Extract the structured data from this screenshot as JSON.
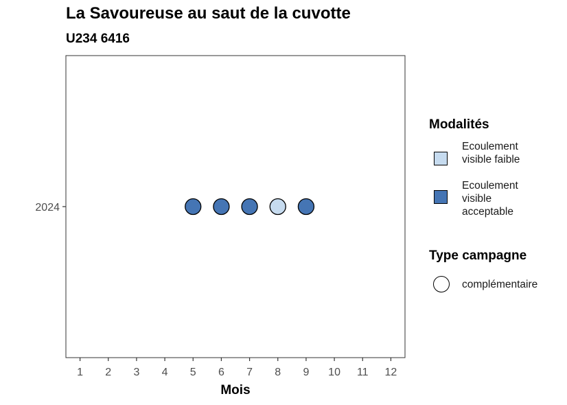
{
  "chart_data": {
    "type": "scatter",
    "title": "La Savoureuse au saut de la cuvotte",
    "subtitle": "U234 6416",
    "xlabel": "Mois",
    "ylabel": "",
    "x_ticks": [
      "1",
      "2",
      "3",
      "4",
      "5",
      "6",
      "7",
      "8",
      "9",
      "10",
      "11",
      "12"
    ],
    "xlim": [
      0.5,
      12.5
    ],
    "y_categories": [
      "2024"
    ],
    "points": [
      {
        "x": 5,
        "y": "2024",
        "modalite": "Ecoulement visible acceptable",
        "type": "complémentaire"
      },
      {
        "x": 6,
        "y": "2024",
        "modalite": "Ecoulement visible acceptable",
        "type": "complémentaire"
      },
      {
        "x": 7,
        "y": "2024",
        "modalite": "Ecoulement visible acceptable",
        "type": "complémentaire"
      },
      {
        "x": 8,
        "y": "2024",
        "modalite": "Ecoulement visible faible",
        "type": "complémentaire"
      },
      {
        "x": 9,
        "y": "2024",
        "modalite": "Ecoulement visible acceptable",
        "type": "complémentaire"
      }
    ],
    "grid": false,
    "legend_position": "right"
  },
  "legend": {
    "modalites_title": "Modalités",
    "modalites": [
      {
        "label": "Ecoulement visible faible",
        "color": "#c6dbef"
      },
      {
        "label": "Ecoulement visible acceptable",
        "color": "#4575b4"
      }
    ],
    "type_title": "Type campagne",
    "types": [
      {
        "label": "complémentaire",
        "shape": "circle"
      }
    ]
  }
}
